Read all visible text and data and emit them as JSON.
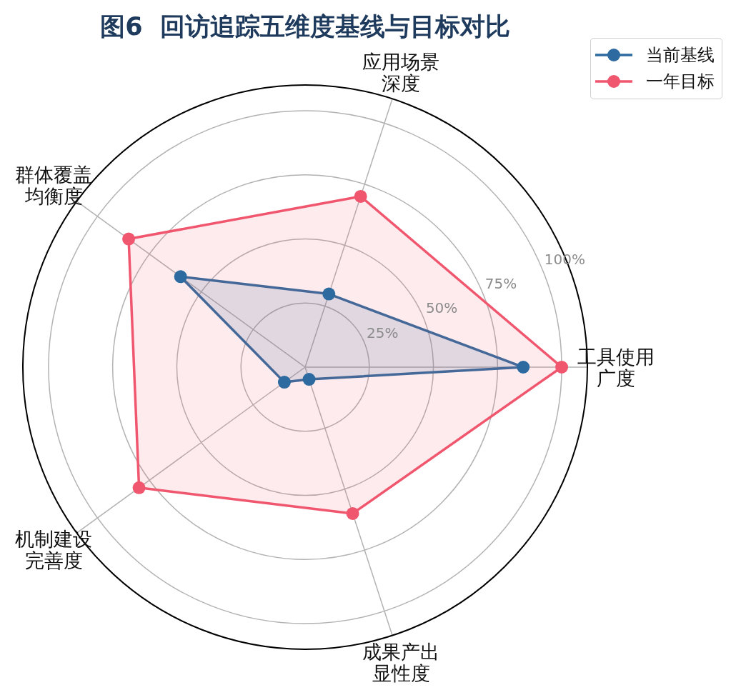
{
  "chart_data": {
    "type": "radar",
    "title": "图6  回访追踪五维度基线与目标对比",
    "categories": [
      "应用场景深度",
      "工具使用广度",
      "成果产出显性度",
      "机制建设完善度",
      "群体覆盖均衡度"
    ],
    "series": [
      {
        "name": "当前基线",
        "color": "#2d6a9f",
        "values": [
          30,
          85,
          5,
          10,
          60
        ]
      },
      {
        "name": "一年目标",
        "color": "#f0576f",
        "values": [
          70,
          100,
          60,
          80,
          85
        ]
      }
    ],
    "ylim": [
      0,
      110
    ],
    "yticks": [
      {
        "value": 25,
        "label": "25%"
      },
      {
        "value": 50,
        "label": "50%"
      },
      {
        "value": 75,
        "label": "75%"
      },
      {
        "value": 100,
        "label": "100%"
      }
    ],
    "grid": true,
    "legend": "top right",
    "marker": "circle",
    "line_style": "solid"
  }
}
